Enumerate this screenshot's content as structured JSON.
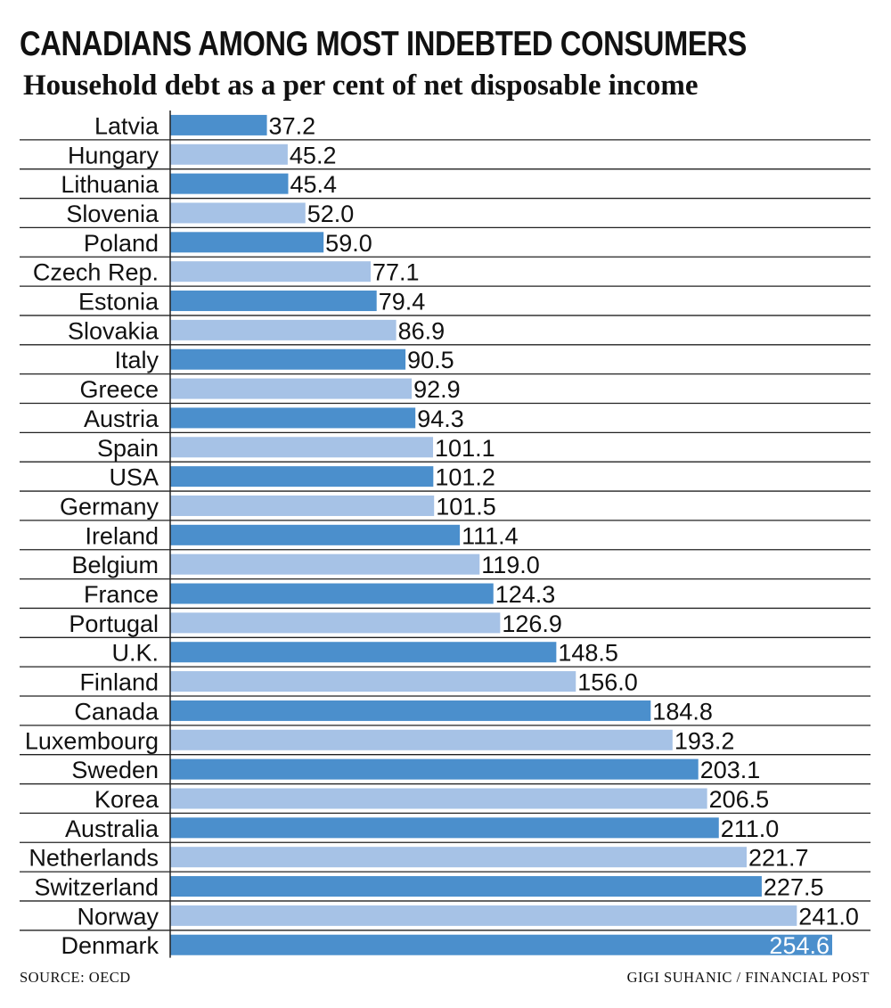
{
  "title": "CANADIANS AMONG MOST INDEBTED CONSUMERS",
  "subtitle": "Household debt as a per cent of net disposable income",
  "source": "SOURCE: OECD",
  "credit": "GIGI SUHANIC / FINANCIAL POST",
  "colors": {
    "bar_dark": "#4b8fcc",
    "bar_light": "#a6c2e6",
    "text": "#111111",
    "rule": "#222222"
  },
  "chart_data": {
    "type": "bar",
    "orientation": "horizontal",
    "title": "CANADIANS AMONG MOST INDEBTED CONSUMERS",
    "subtitle": "Household debt as a per cent of net disposable income",
    "categories": [
      "Latvia",
      "Hungary",
      "Lithuania",
      "Slovenia",
      "Poland",
      "Czech Rep.",
      "Estonia",
      "Slovakia",
      "Italy",
      "Greece",
      "Austria",
      "Spain",
      "USA",
      "Germany",
      "Ireland",
      "Belgium",
      "France",
      "Portugal",
      "U.K.",
      "Finland",
      "Canada",
      "Luxembourg",
      "Sweden",
      "Korea",
      "Australia",
      "Netherlands",
      "Switzerland",
      "Norway",
      "Denmark"
    ],
    "values": [
      37.2,
      45.2,
      45.4,
      52.0,
      59.0,
      77.1,
      79.4,
      86.9,
      90.5,
      92.9,
      94.3,
      101.1,
      101.2,
      101.5,
      111.4,
      119.0,
      124.3,
      126.9,
      148.5,
      156.0,
      184.8,
      193.2,
      203.1,
      206.5,
      211.0,
      221.7,
      227.5,
      241.0,
      254.6
    ],
    "value_labels": [
      "37.2",
      "45.2",
      "45.4",
      "52.0",
      "59.0",
      "77.1",
      "79.4",
      "86.9",
      "90.5",
      "92.9",
      "94.3",
      "101.1",
      "101.2",
      "101.5",
      "111.4",
      "119.0",
      "124.3",
      "126.9",
      "148.5",
      "156.0",
      "184.8",
      "193.2",
      "203.1",
      "206.5",
      "211.0",
      "221.7",
      "227.5",
      "241.0",
      "254.6"
    ],
    "xlim": [
      0,
      254.6
    ],
    "bar_colors": "alternating dark/light blue",
    "grid": false,
    "legend": "none"
  }
}
